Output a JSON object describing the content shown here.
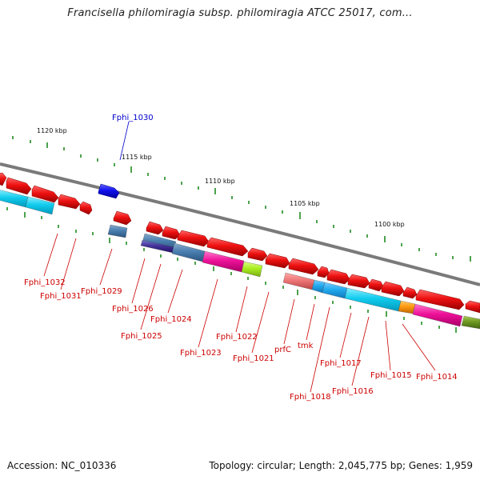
{
  "title": "Francisella philomiragia subsp. philomiragia ATCC 25017, com...",
  "footer": {
    "accession": "Accession: NC_010336",
    "summary": "Topology: circular; Length: 2,045,775 bp; Genes: 1,959"
  },
  "scale_labels": [
    "1120 kbp",
    "1115 kbp",
    "1110 kbp",
    "1105 kbp",
    "1100 kbp"
  ],
  "gene_labels": [
    "Fphi_1030",
    "Fphi_1032",
    "Fphi_1031",
    "Fphi_1029",
    "Fphi_1026",
    "Fphi_1025",
    "Fphi_1024",
    "Fphi_1023",
    "Fphi_1022",
    "Fphi_1021",
    "prfC",
    "tmk",
    "Fphi_1018",
    "Fphi_1017",
    "Fphi_1016",
    "Fphi_1015",
    "Fphi_1014"
  ],
  "colors": {
    "forward_gene": "#ee1111",
    "highlight_gene": "#1111ee",
    "label": "#cc0000",
    "highlight_label": "#0000cc",
    "backbone": "#808080",
    "tick": "#228b22"
  }
}
